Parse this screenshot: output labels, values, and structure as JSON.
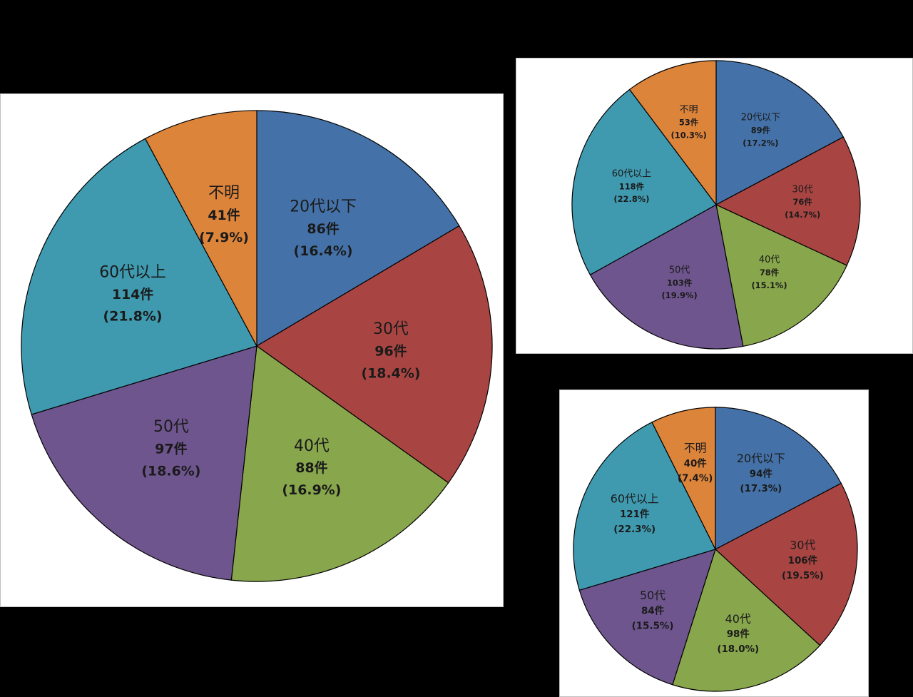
{
  "colors": {
    "20代以下": "#4472a8",
    "30代": "#a84543",
    "40代": "#88a64c",
    "50代": "#6f558e",
    "60代以上": "#3f9ab0",
    "不明": "#dd843b"
  },
  "chart_data": [
    {
      "type": "pie",
      "start_angle_deg": 0,
      "direction": "clockwise",
      "slices": [
        {
          "category": "20代以下",
          "count_label": "86件",
          "pct_label": "(16.4%)",
          "value": 86,
          "percent": 16.4
        },
        {
          "category": "30代",
          "count_label": "96件",
          "pct_label": "(18.4%)",
          "value": 96,
          "percent": 18.4
        },
        {
          "category": "40代",
          "count_label": "88件",
          "pct_label": "(16.9%)",
          "value": 88,
          "percent": 16.9
        },
        {
          "category": "50代",
          "count_label": "97件",
          "pct_label": "(18.6%)",
          "value": 97,
          "percent": 18.6
        },
        {
          "category": "60代以上",
          "count_label": "114件",
          "pct_label": "(21.8%)",
          "value": 114,
          "percent": 21.8
        },
        {
          "category": "不明",
          "count_label": "41件",
          "pct_label": "(7.9%)",
          "value": 41,
          "percent": 7.9
        }
      ]
    },
    {
      "type": "pie",
      "start_angle_deg": 0,
      "direction": "clockwise",
      "slices": [
        {
          "category": "20代以下",
          "count_label": "89件",
          "pct_label": "(17.2%)",
          "value": 89,
          "percent": 17.2
        },
        {
          "category": "30代",
          "count_label": "76件",
          "pct_label": "(14.7%)",
          "value": 76,
          "percent": 14.7
        },
        {
          "category": "40代",
          "count_label": "78件",
          "pct_label": "(15.1%)",
          "value": 78,
          "percent": 15.1
        },
        {
          "category": "50代",
          "count_label": "103件",
          "pct_label": "(19.9%)",
          "value": 103,
          "percent": 19.9
        },
        {
          "category": "60代以上",
          "count_label": "118件",
          "pct_label": "(22.8%)",
          "value": 118,
          "percent": 22.8
        },
        {
          "category": "不明",
          "count_label": "53件",
          "pct_label": "(10.3%)",
          "value": 53,
          "percent": 10.3
        }
      ]
    },
    {
      "type": "pie",
      "start_angle_deg": 0,
      "direction": "clockwise",
      "slices": [
        {
          "category": "20代以下",
          "count_label": "94件",
          "pct_label": "(17.3%)",
          "value": 94,
          "percent": 17.3
        },
        {
          "category": "30代",
          "count_label": "106件",
          "pct_label": "(19.5%)",
          "value": 106,
          "percent": 19.5
        },
        {
          "category": "40代",
          "count_label": "98件",
          "pct_label": "(18.0%)",
          "value": 98,
          "percent": 18.0
        },
        {
          "category": "50代",
          "count_label": "84件",
          "pct_label": "(15.5%)",
          "value": 84,
          "percent": 15.5
        },
        {
          "category": "60代以上",
          "count_label": "121件",
          "pct_label": "(22.3%)",
          "value": 121,
          "percent": 22.3
        },
        {
          "category": "不明",
          "count_label": "40件",
          "pct_label": "(7.4%)",
          "value": 40,
          "percent": 7.4
        }
      ]
    }
  ]
}
